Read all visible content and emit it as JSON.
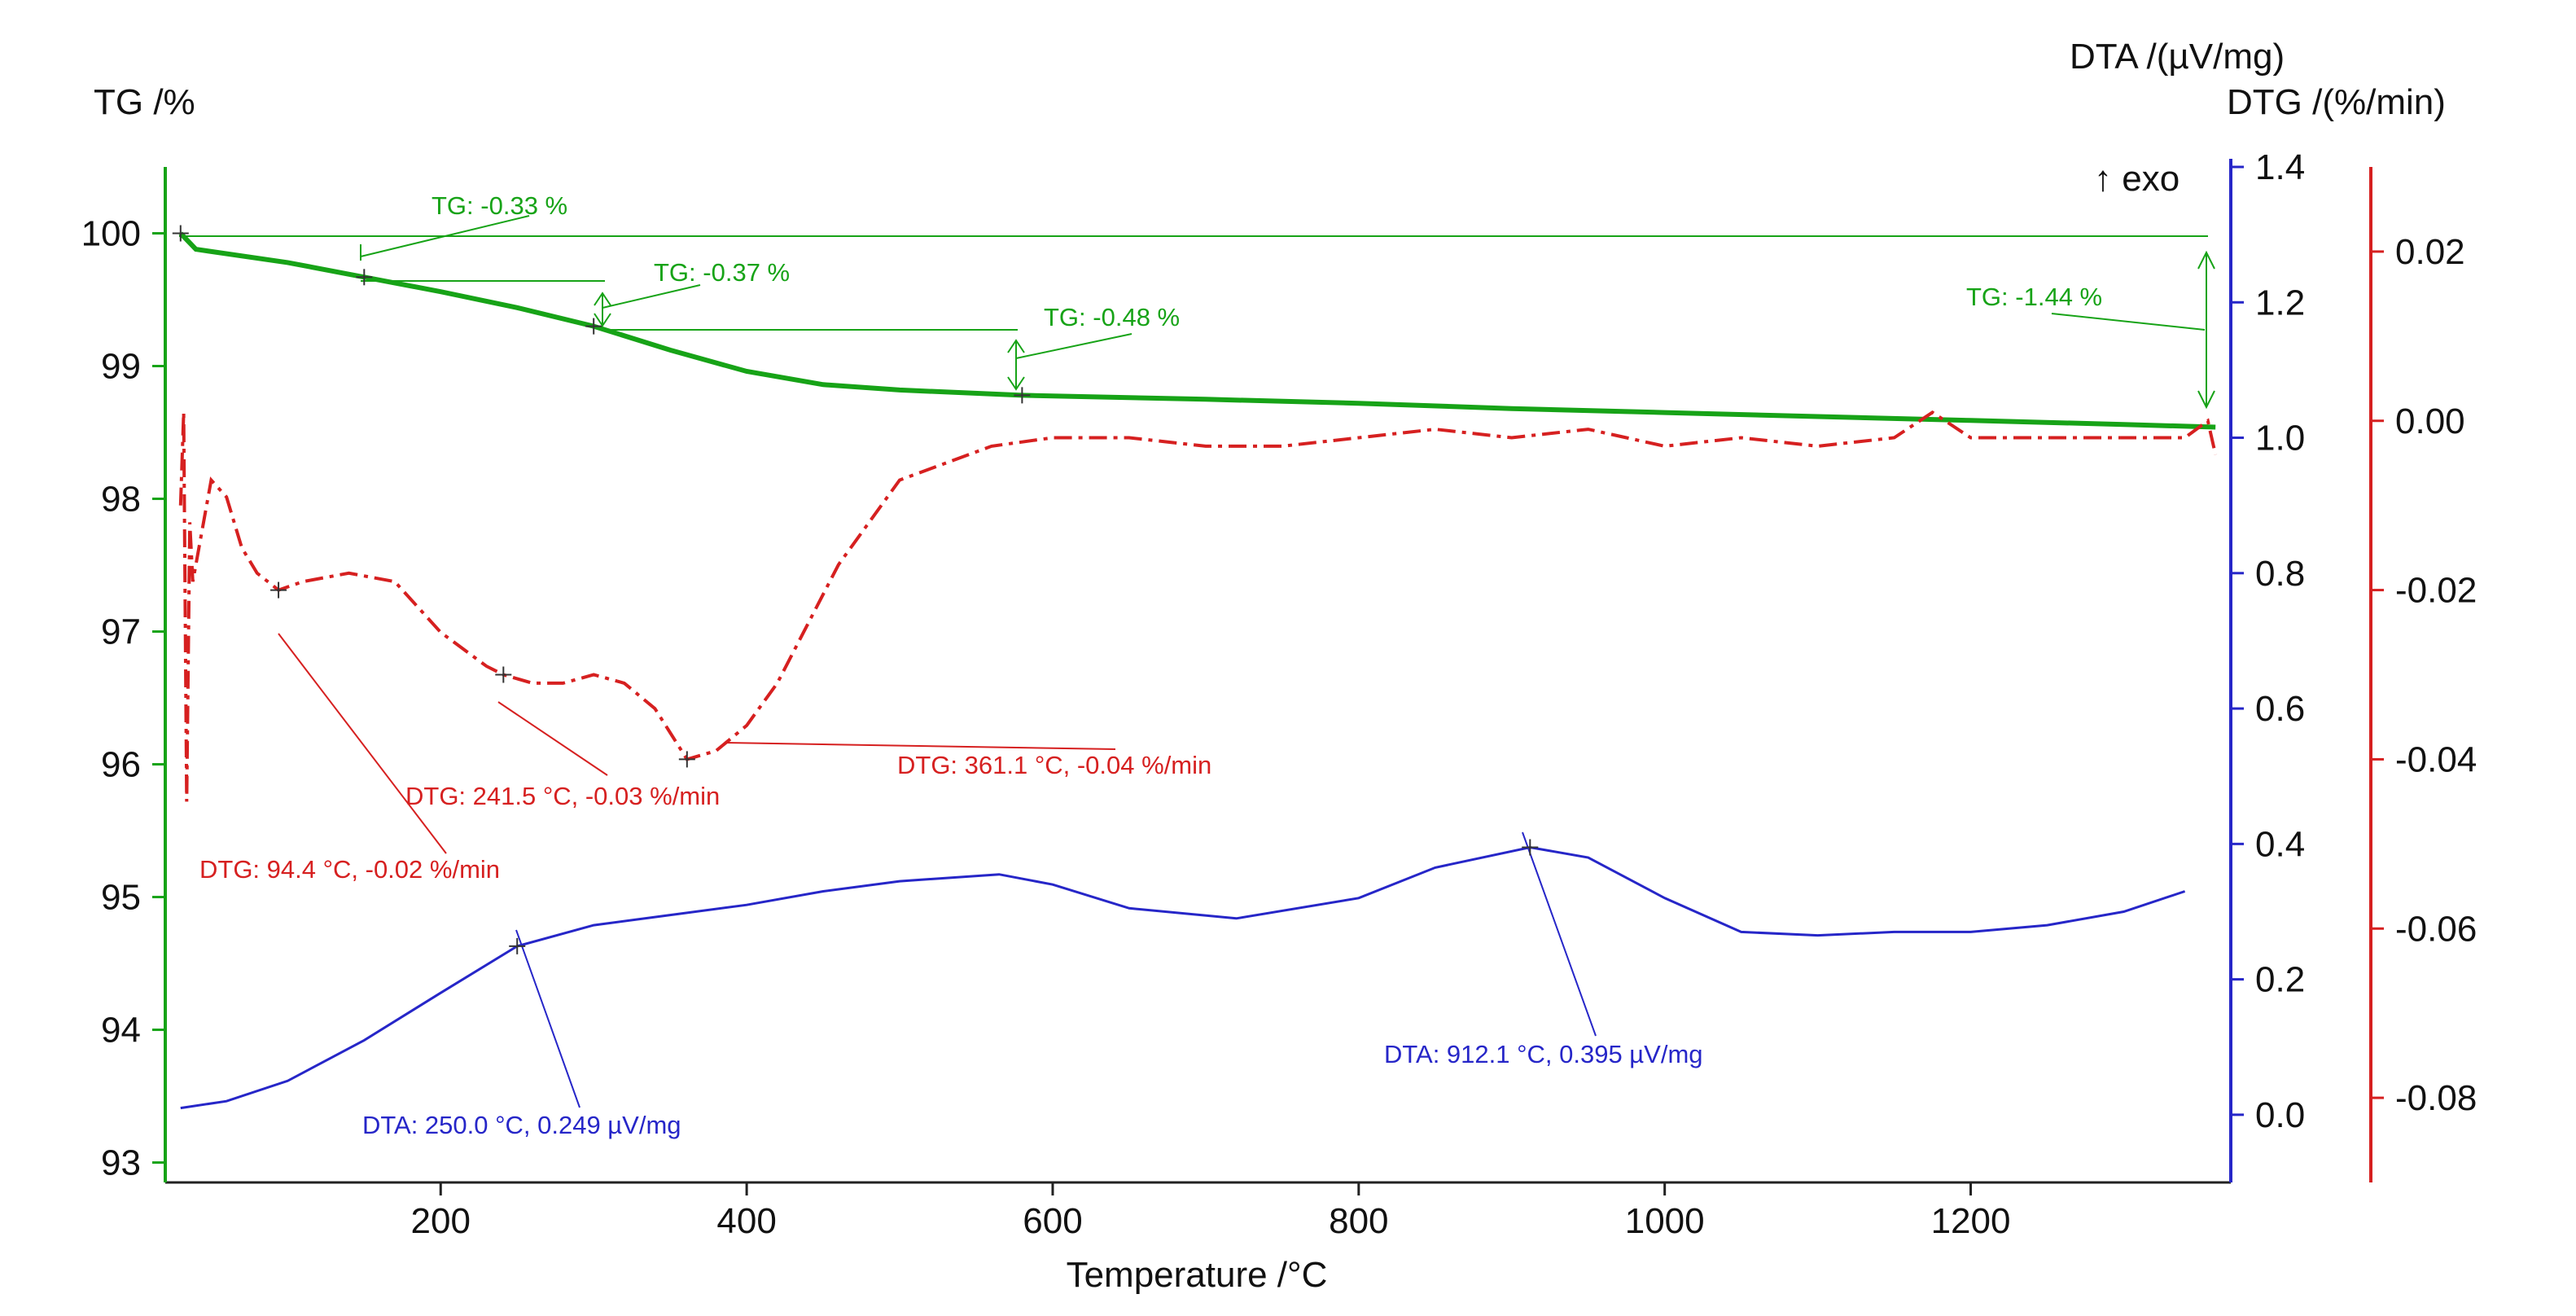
{
  "chart_data": {
    "type": "line",
    "xlabel": "Temperature /°C",
    "xlim": [
      20,
      1370
    ],
    "x_ticks": [
      200,
      400,
      600,
      800,
      1000,
      1200
    ],
    "left_axis": {
      "label": "TG /%",
      "ylim": [
        92.85,
        100.5
      ],
      "ticks": [
        93,
        94,
        95,
        96,
        97,
        98,
        99,
        100
      ]
    },
    "right_axis_1": {
      "label": "DTA /(µV/mg)",
      "ylim": [
        -0.1,
        1.4
      ],
      "ticks": [
        0.0,
        0.2,
        0.4,
        0.6,
        0.8,
        1.0,
        1.2,
        1.4
      ],
      "note": "↑ exo"
    },
    "right_axis_2": {
      "label": "DTG /(%/min)",
      "ylim": [
        -0.09,
        0.03
      ],
      "ticks": [
        -0.08,
        -0.06,
        -0.04,
        -0.02,
        0.0,
        0.02
      ]
    },
    "colors": {
      "tg": "#17a317",
      "dtg": "#d62020",
      "dta": "#2626c8",
      "axis": "#222222"
    },
    "series": [
      {
        "name": "TG",
        "axis": "left",
        "color": "#17a317",
        "x": [
          30,
          40,
          100,
          150,
          200,
          250,
          300,
          350,
          400,
          450,
          500,
          580,
          700,
          800,
          900,
          1000,
          1100,
          1200,
          1300,
          1360
        ],
        "y": [
          100.0,
          99.88,
          99.78,
          99.67,
          99.56,
          99.44,
          99.3,
          99.12,
          98.96,
          98.86,
          98.82,
          98.78,
          98.75,
          98.72,
          98.68,
          98.65,
          98.62,
          98.59,
          98.56,
          98.54
        ]
      },
      {
        "name": "DTG",
        "axis": "right2",
        "color": "#d62020",
        "x": [
          30,
          32,
          34,
          36,
          38,
          40,
          50,
          60,
          70,
          80,
          94,
          110,
          140,
          170,
          200,
          230,
          241,
          260,
          280,
          300,
          320,
          340,
          361,
          380,
          400,
          420,
          440,
          460,
          480,
          500,
          530,
          560,
          600,
          650,
          700,
          750,
          800,
          850,
          900,
          950,
          1000,
          1050,
          1100,
          1150,
          1175,
          1200,
          1250,
          1300,
          1340,
          1355,
          1360
        ],
        "y": [
          -0.01,
          0.001,
          -0.045,
          -0.012,
          -0.019,
          -0.017,
          -0.007,
          -0.009,
          -0.015,
          -0.018,
          -0.02,
          -0.019,
          -0.018,
          -0.019,
          -0.025,
          -0.029,
          -0.03,
          -0.031,
          -0.031,
          -0.03,
          -0.031,
          -0.034,
          -0.04,
          -0.039,
          -0.036,
          -0.031,
          -0.024,
          -0.017,
          -0.012,
          -0.007,
          -0.005,
          -0.003,
          -0.002,
          -0.002,
          -0.003,
          -0.003,
          -0.002,
          -0.001,
          -0.002,
          -0.001,
          -0.003,
          -0.002,
          -0.003,
          -0.002,
          0.001,
          -0.002,
          -0.002,
          -0.002,
          -0.002,
          0.0,
          -0.004
        ]
      },
      {
        "name": "DTA",
        "axis": "right1",
        "color": "#2626c8",
        "x": [
          30,
          60,
          100,
          150,
          200,
          250,
          300,
          350,
          400,
          450,
          500,
          565,
          600,
          650,
          720,
          800,
          850,
          912,
          950,
          1000,
          1050,
          1100,
          1150,
          1200,
          1250,
          1300,
          1340
        ],
        "y": [
          0.01,
          0.02,
          0.05,
          0.11,
          0.18,
          0.249,
          0.28,
          0.295,
          0.31,
          0.33,
          0.345,
          0.355,
          0.34,
          0.305,
          0.29,
          0.32,
          0.365,
          0.395,
          0.38,
          0.32,
          0.27,
          0.265,
          0.27,
          0.27,
          0.28,
          0.3,
          0.33
        ]
      }
    ],
    "annotations": {
      "tg": [
        "TG: -0.33 %",
        "TG: -0.37 %",
        "TG: -0.48 %",
        "TG: -1.44 %"
      ],
      "dtg": [
        "DTG: 94.4 °C, -0.02 %/min",
        "DTG: 241.5 °C, -0.03 %/min",
        "DTG: 361.1 °C, -0.04 %/min"
      ],
      "dta": [
        "DTA: 250.0 °C, 0.249 µV/mg",
        "DTA: 912.1 °C, 0.395 µV/mg"
      ]
    }
  }
}
